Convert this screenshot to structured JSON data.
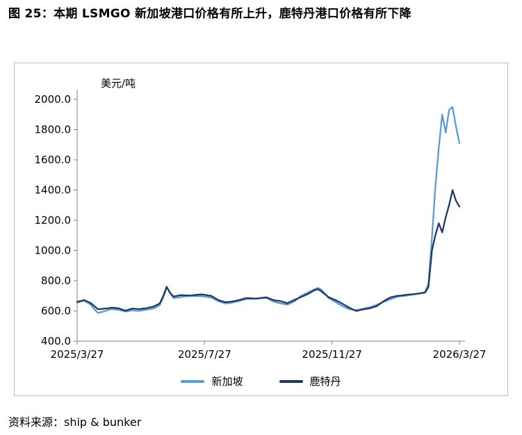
{
  "page": {
    "title": "图 25：本期 LSMGO 新加坡港口价格有所上升，鹿特丹港口价格有所下降",
    "source": "资料来源：ship & bunker"
  },
  "chart_data": {
    "type": "line",
    "title": "",
    "unit_label": "美元/吨",
    "xlabel": "",
    "ylabel": "美元/吨",
    "ylim": [
      400,
      2000
    ],
    "y_ticks": [
      2000,
      1800,
      1600,
      1400,
      1200,
      1000,
      800,
      600,
      400
    ],
    "x_tick_labels": [
      "2025/3/27",
      "2025/7/27",
      "2025/11/27",
      "2026/3/27"
    ],
    "grid": false,
    "legend_position": "bottom",
    "axis_color": "#808080",
    "series": [
      {
        "name": "新加坡",
        "color": "#5B9BD5",
        "values": [
          655,
          662,
          668,
          655,
          640,
          612,
          588,
          592,
          598,
          606,
          612,
          610,
          608,
          602,
          596,
          600,
          604,
          602,
          600,
          604,
          608,
          612,
          615,
          625,
          640,
          690,
          755,
          720,
          685,
          688,
          692,
          695,
          698,
          700,
          699,
          698,
          698,
          695,
          692,
          688,
          676,
          665,
          657,
          650,
          652,
          655,
          660,
          665,
          672,
          678,
          680,
          681,
          682,
          683,
          685,
          686,
          674,
          662,
          656,
          650,
          646,
          642,
          652,
          662,
          681,
          700,
          711,
          722,
          733,
          745,
          752,
          740,
          712,
          685,
          672,
          660,
          646,
          632,
          622,
          612,
          608,
          605,
          610,
          615,
          620,
          625,
          633,
          642,
          651,
          660,
          669,
          678,
          686,
          695,
          698,
          700,
          703,
          707,
          710,
          714,
          718,
          725,
          780,
          1080,
          1420,
          1680,
          1900,
          1780,
          1930,
          1950,
          1820,
          1710
        ]
      },
      {
        "name": "鹿特丹",
        "color": "#1F3864",
        "values": [
          660,
          666,
          672,
          662,
          652,
          632,
          612,
          613,
          615,
          618,
          622,
          620,
          618,
          610,
          602,
          609,
          616,
          614,
          612,
          615,
          618,
          623,
          628,
          638,
          650,
          700,
          760,
          718,
          695,
          700,
          705,
          704,
          703,
          702,
          705,
          708,
          710,
          707,
          703,
          700,
          686,
          672,
          665,
          658,
          660,
          662,
          667,
          672,
          678,
          685,
          684,
          683,
          682,
          685,
          688,
          690,
          681,
          672,
          668,
          665,
          658,
          652,
          662,
          672,
          682,
          692,
          702,
          712,
          725,
          738,
          744,
          728,
          710,
          692,
          682,
          672,
          660,
          648,
          635,
          622,
          611,
          600,
          605,
          610,
          614,
          618,
          625,
          632,
          648,
          665,
          678,
          690,
          695,
          700,
          702,
          705,
          708,
          710,
          712,
          715,
          718,
          722,
          758,
          1000,
          1100,
          1180,
          1120,
          1220,
          1300,
          1400,
          1330,
          1290
        ]
      }
    ]
  }
}
